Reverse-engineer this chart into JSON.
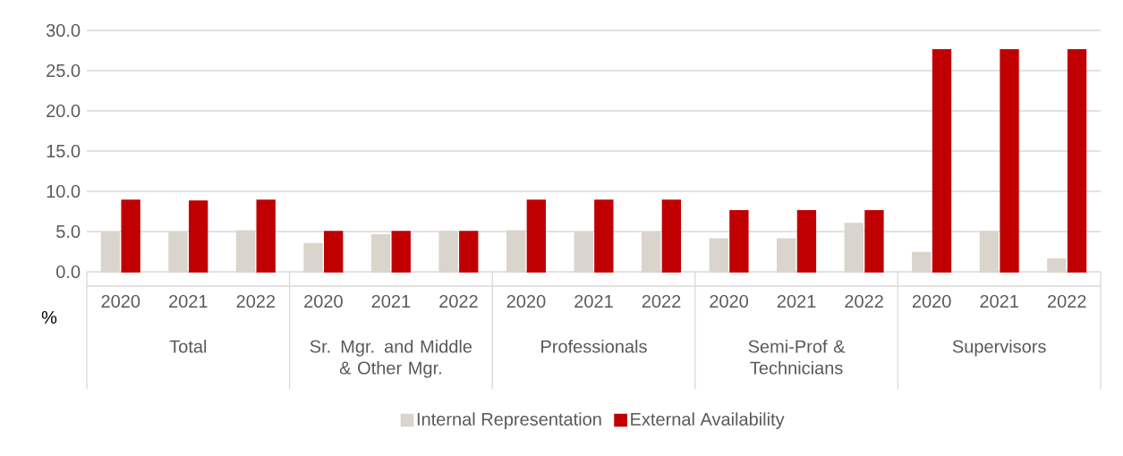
{
  "chart_data": {
    "type": "bar",
    "ylabel": "%",
    "categories": [
      "2020",
      "2021",
      "2022",
      "2020",
      "2021",
      "2022",
      "2020",
      "2021",
      "2022",
      "2020",
      "2021",
      "2022",
      "2020",
      "2021",
      "2022"
    ],
    "annotations": [
      "Total",
      "Sr. Mgr. and Middle & Other Mgr.",
      "Professionals",
      "Semi-Prof & Technicians",
      "Supervisors"
    ],
    "series": [
      {
        "name": "Internal Representation",
        "color": "#d9d4cc",
        "values": [
          4.9,
          4.9,
          5.1,
          3.5,
          4.6,
          5.0,
          5.1,
          4.9,
          4.9,
          4.1,
          4.1,
          6.0,
          2.4,
          5.0,
          1.6
        ]
      },
      {
        "name": "External Availability",
        "color": "#c00000",
        "values": [
          8.9,
          8.8,
          8.9,
          5.0,
          5.0,
          5.0,
          8.9,
          8.9,
          8.9,
          7.6,
          7.6,
          7.6,
          27.6,
          27.6,
          27.6
        ]
      }
    ],
    "ylim": [
      0,
      30
    ],
    "yticks": [
      {
        "value": 0,
        "label": "0.0"
      },
      {
        "value": 5,
        "label": "5.0"
      },
      {
        "value": 10,
        "label": "10.0"
      },
      {
        "value": 15,
        "label": "15.0"
      },
      {
        "value": 20,
        "label": "20.0"
      },
      {
        "value": 25,
        "label": "25.0"
      },
      {
        "value": 30,
        "label": "30.0"
      }
    ],
    "grid": "y",
    "legend": "bottom"
  }
}
